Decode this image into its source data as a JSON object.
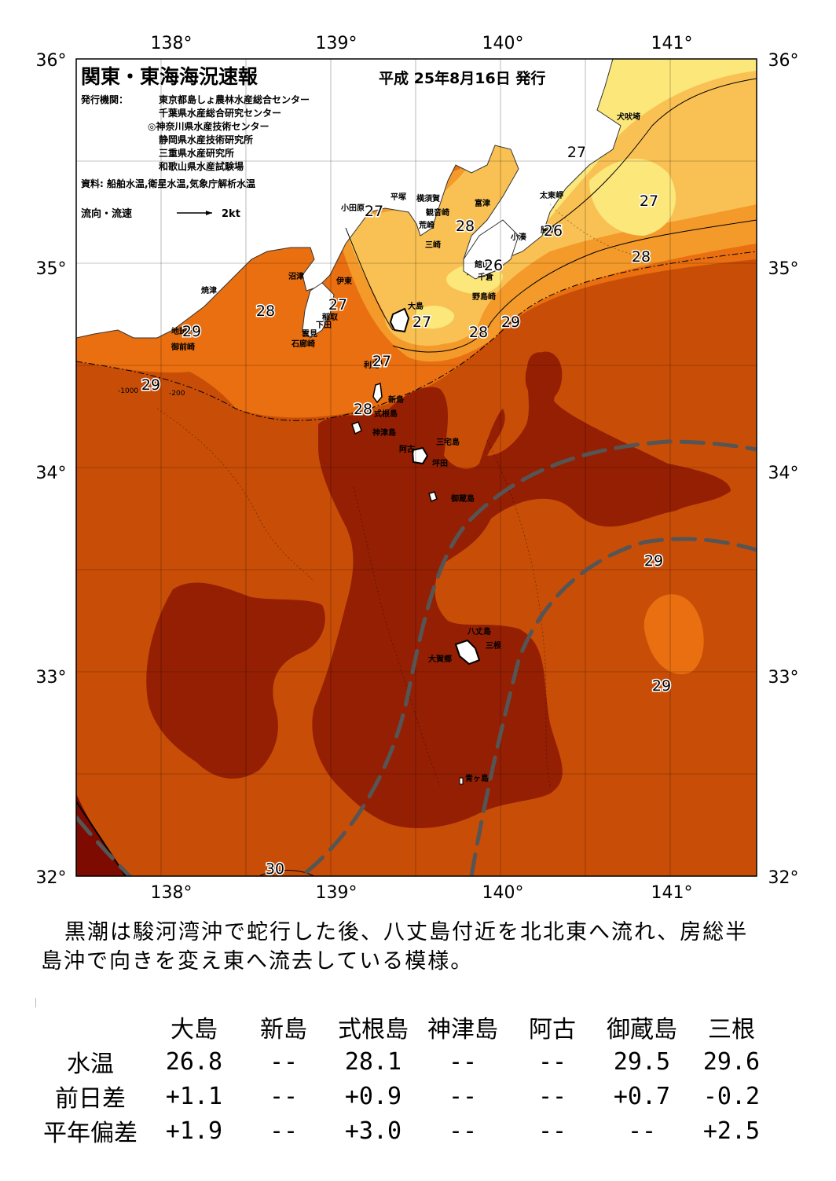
{
  "header": {
    "title": "関東・東海海況速報",
    "date": "平成 25年8月16日 発行",
    "issuer_label": "発行機関：",
    "issuers": [
      "東京都島しょ農林水産総合センター",
      "千葉県水産総合研究センター",
      "◎神奈川県水産技術センター",
      "静岡県水産技術研究所",
      "三重県水産研究所",
      "和歌山県水産試験場"
    ],
    "source": "資料: 船舶水温,衛星水温,気象庁解析水温",
    "flow_label": "流向・流速",
    "flow_scale": "2kt"
  },
  "axes": {
    "lon_labels": [
      "138°",
      "139°",
      "140°",
      "141°"
    ],
    "lat_labels": [
      "36°",
      "35°",
      "34°",
      "33°",
      "32°"
    ]
  },
  "place_names": [
    "犬吠埼",
    "太東岬",
    "小湊",
    "勝浦",
    "富津",
    "横須賀",
    "観音崎",
    "平塚",
    "小田原",
    "荒崎",
    "三崎",
    "館山",
    "千倉",
    "野島崎",
    "沼津",
    "伊東",
    "焼津",
    "稲取",
    "下田",
    "雲見",
    "石廊崎",
    "地頭方",
    "御前崎",
    "大島",
    "利島",
    "新島",
    "式根島",
    "神津島",
    "三宅島",
    "阿古",
    "坪田",
    "御蔵島",
    "八丈島",
    "三根",
    "大賀郷",
    "青ヶ島"
  ],
  "contour_labels": [
    "27",
    "27",
    "28",
    "26",
    "26",
    "28",
    "27",
    "28",
    "29",
    "27",
    "29",
    "28",
    "29",
    "27",
    "28",
    "29",
    "29",
    "29",
    "30",
    "27",
    "-1000",
    "-200"
  ],
  "colors": {
    "sst_26": "#fbe77a",
    "sst_27": "#f9c154",
    "sst_28": "#f39a2a",
    "sst_28_5": "#e96f10",
    "sst_29": "#c84e07",
    "sst_29_5": "#951f03",
    "sst_30": "#7d0b02",
    "kuroshio_axis": "#555555",
    "land": "#ffffff"
  },
  "description": [
    "黒潮は駿河湾沖で蛇行した後、八丈島付近を北北東へ流れ、房総半",
    "島沖で向きを変え東へ流去している模様。"
  ],
  "table": {
    "headers": [
      "大島",
      "新島",
      "式根島",
      "神津島",
      "阿古",
      "御蔵島",
      "三根"
    ],
    "rows": [
      {
        "label": "水温",
        "values": [
          "26.8",
          "--",
          "28.1",
          "--",
          "--",
          "29.5",
          "29.6"
        ]
      },
      {
        "label": "前日差",
        "values": [
          "+1.1",
          "--",
          "+0.9",
          "--",
          "--",
          "+0.7",
          "-0.2"
        ]
      },
      {
        "label": "平年偏差",
        "values": [
          "+1.9",
          "--",
          "+3.0",
          "--",
          "--",
          "--",
          "+2.5"
        ]
      }
    ]
  }
}
